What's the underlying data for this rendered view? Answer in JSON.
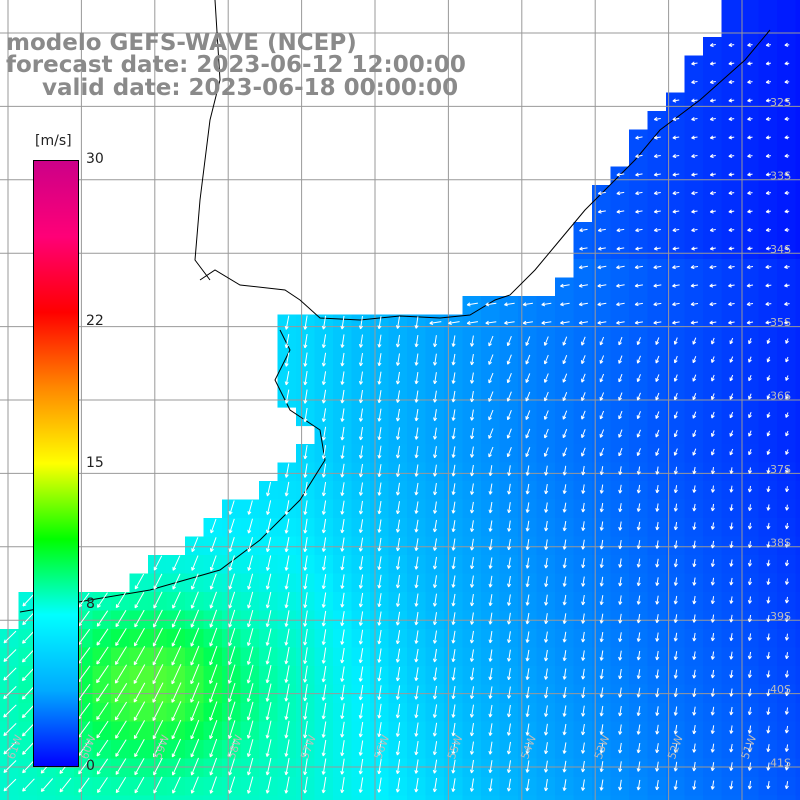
{
  "title": {
    "line1": "modelo GEFS-WAVE (NCEP)",
    "line2": "forecast date: 2023-06-12 12:00:00",
    "line3": "valid date: 2023-06-18 00:00:00"
  },
  "colorbar": {
    "unit": "[m/s]",
    "min": 0,
    "max": 30,
    "ticks": [
      {
        "value": 30,
        "label": "30"
      },
      {
        "value": 22,
        "label": "22"
      },
      {
        "value": 15,
        "label": "15"
      },
      {
        "value": 8,
        "label": "8"
      },
      {
        "value": 0,
        "label": "0"
      }
    ],
    "stops": [
      "#0000ff",
      "#00aaff",
      "#00ffff",
      "#00ff00",
      "#ffff00",
      "#ff8800",
      "#ff0000",
      "#ff0077",
      "#cc0088"
    ]
  },
  "map": {
    "lat_labels": [
      "32S",
      "33S",
      "34S",
      "35S",
      "36S",
      "37S",
      "38S",
      "39S",
      "40S",
      "41S"
    ],
    "lon_labels": [
      "61W",
      "60W",
      "59W",
      "58W",
      "57W",
      "56W",
      "55W",
      "54W",
      "53W",
      "52W",
      "51W"
    ],
    "colors": {
      "land": "#ffffff",
      "grid": "#999999",
      "coast": "#000000",
      "arrow": "#ffffff"
    }
  }
}
